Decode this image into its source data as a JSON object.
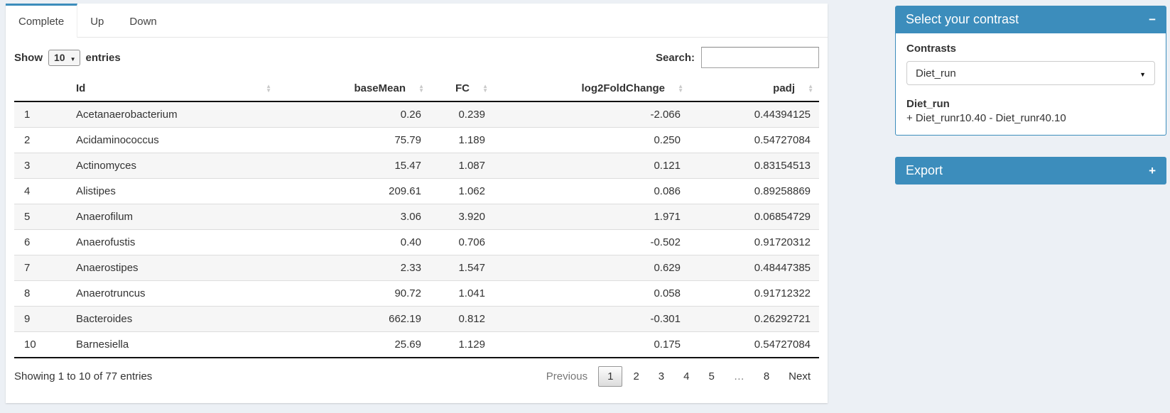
{
  "colors": {
    "accent": "#3c8dbc",
    "page_bg": "#ecf0f5",
    "stripe": "#f6f6f6"
  },
  "tabs": [
    {
      "label": "Complete",
      "active": true
    },
    {
      "label": "Up",
      "active": false
    },
    {
      "label": "Down",
      "active": false
    }
  ],
  "table_controls": {
    "show_label": "Show",
    "page_length": "10",
    "entries_label": "entries",
    "search_label": "Search:",
    "search_value": ""
  },
  "table": {
    "columns": [
      {
        "label": ""
      },
      {
        "label": "Id"
      },
      {
        "label": "baseMean"
      },
      {
        "label": "FC"
      },
      {
        "label": "log2FoldChange"
      },
      {
        "label": "padj"
      }
    ],
    "rows": [
      {
        "n": "1",
        "id": "Acetanaerobacterium",
        "baseMean": "0.26",
        "fc": "0.239",
        "log2fc": "-2.066",
        "padj": "0.44394125"
      },
      {
        "n": "2",
        "id": "Acidaminococcus",
        "baseMean": "75.79",
        "fc": "1.189",
        "log2fc": "0.250",
        "padj": "0.54727084"
      },
      {
        "n": "3",
        "id": "Actinomyces",
        "baseMean": "15.47",
        "fc": "1.087",
        "log2fc": "0.121",
        "padj": "0.83154513"
      },
      {
        "n": "4",
        "id": "Alistipes",
        "baseMean": "209.61",
        "fc": "1.062",
        "log2fc": "0.086",
        "padj": "0.89258869"
      },
      {
        "n": "5",
        "id": "Anaerofilum",
        "baseMean": "3.06",
        "fc": "3.920",
        "log2fc": "1.971",
        "padj": "0.06854729"
      },
      {
        "n": "6",
        "id": "Anaerofustis",
        "baseMean": "0.40",
        "fc": "0.706",
        "log2fc": "-0.502",
        "padj": "0.91720312"
      },
      {
        "n": "7",
        "id": "Anaerostipes",
        "baseMean": "2.33",
        "fc": "1.547",
        "log2fc": "0.629",
        "padj": "0.48447385"
      },
      {
        "n": "8",
        "id": "Anaerotruncus",
        "baseMean": "90.72",
        "fc": "1.041",
        "log2fc": "0.058",
        "padj": "0.91712322"
      },
      {
        "n": "9",
        "id": "Bacteroides",
        "baseMean": "662.19",
        "fc": "0.812",
        "log2fc": "-0.301",
        "padj": "0.26292721"
      },
      {
        "n": "10",
        "id": "Barnesiella",
        "baseMean": "25.69",
        "fc": "1.129",
        "log2fc": "0.175",
        "padj": "0.54727084"
      }
    ]
  },
  "footer": {
    "info": "Showing 1 to 10 of 77 entries",
    "pagination": [
      {
        "label": "Previous",
        "name": "previous",
        "state": "disabled"
      },
      {
        "label": "1",
        "name": "page-1",
        "state": "current"
      },
      {
        "label": "2",
        "name": "page-2",
        "state": ""
      },
      {
        "label": "3",
        "name": "page-3",
        "state": ""
      },
      {
        "label": "4",
        "name": "page-4",
        "state": ""
      },
      {
        "label": "5",
        "name": "page-5",
        "state": ""
      },
      {
        "label": "…",
        "name": "ellipsis",
        "state": "disabled"
      },
      {
        "label": "8",
        "name": "page-8",
        "state": ""
      },
      {
        "label": "Next",
        "name": "next",
        "state": ""
      }
    ]
  },
  "sidebar": {
    "contrast_panel": {
      "title": "Select your contrast",
      "collapse_icon": "−",
      "contrasts_label": "Contrasts",
      "selected_contrast": "Diet_run",
      "detail_title": "Diet_run",
      "detail_text": "+ Diet_runr10.40 - Diet_runr40.10"
    },
    "export_panel": {
      "title": "Export",
      "collapse_icon": "+"
    }
  }
}
